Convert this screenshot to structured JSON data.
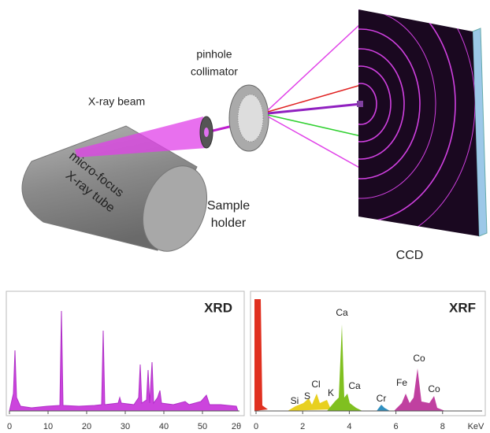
{
  "diagram": {
    "labels": {
      "pinhole": "pinhole",
      "collimator": "collimator",
      "beam": "X-ray beam",
      "tube_line1": "micro-focus",
      "tube_line2": "X-ray tube",
      "sample_line1": "Sample",
      "sample_line2": "holder",
      "detector": "CCD"
    },
    "xrd": {
      "title": "XRD",
      "xticks": [
        0,
        10,
        20,
        30,
        40,
        50
      ],
      "x_unit": "2θ"
    },
    "xrf": {
      "title": "XRF",
      "xticks": [
        0,
        2,
        4,
        6,
        8
      ],
      "x_unit": "KeV",
      "peak_labels": [
        "Si",
        "S",
        "Cl",
        "K",
        "Ca",
        "Ca",
        "Cr",
        "Fe",
        "Co",
        "Co"
      ]
    }
  }
}
